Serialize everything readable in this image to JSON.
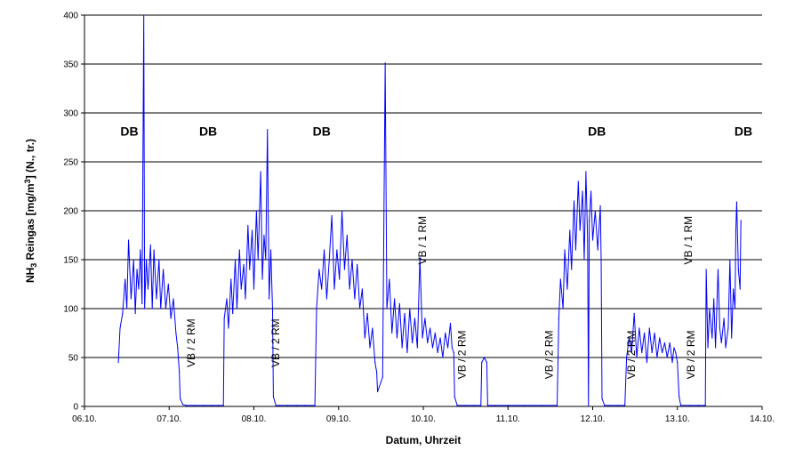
{
  "chart_data": {
    "type": "line",
    "title": "",
    "xlabel": "Datum, Uhrzeit",
    "ylabel_main": "NH",
    "ylabel_sub": "3",
    "ylabel_mid": " Reingas [mg/m",
    "ylabel_sup": "3",
    "ylabel_end": "] (N., tr.)",
    "x_ticks": [
      "06.10.",
      "07.10.",
      "08.10.",
      "09.10.",
      "10.10.",
      "11.10.",
      "12.10.",
      "13.10.",
      "14.10."
    ],
    "xlim": [
      0,
      8
    ],
    "ylim": [
      0,
      400
    ],
    "y_ticks": [
      0,
      50,
      100,
      150,
      200,
      250,
      300,
      350,
      400
    ],
    "grid": "horizontal",
    "series_color": "#0000ff",
    "annotations": [
      {
        "text": "DB",
        "x": 0.53,
        "y": 277,
        "style": "db"
      },
      {
        "text": "DB",
        "x": 1.46,
        "y": 277,
        "style": "db"
      },
      {
        "text": "DB",
        "x": 2.8,
        "y": 277,
        "style": "db"
      },
      {
        "text": "DB",
        "x": 6.05,
        "y": 277,
        "style": "db"
      },
      {
        "text": "DB",
        "x": 7.78,
        "y": 277,
        "style": "db"
      },
      {
        "text": "VB / 2 RM",
        "x": 1.3,
        "y": 40,
        "style": "vb"
      },
      {
        "text": "VB / 2 RM",
        "x": 2.3,
        "y": 40,
        "style": "vb"
      },
      {
        "text": "VB / 1 RM",
        "x": 4.03,
        "y": 145,
        "style": "vb"
      },
      {
        "text": "VB / 2 RM",
        "x": 4.5,
        "y": 28,
        "style": "vb"
      },
      {
        "text": "VB / 2 RM",
        "x": 5.53,
        "y": 28,
        "style": "vb"
      },
      {
        "text": "VB / 2 RM",
        "x": 6.5,
        "y": 28,
        "style": "vb"
      },
      {
        "text": "VB / 1 RM",
        "x": 7.17,
        "y": 145,
        "style": "vb"
      },
      {
        "text": "VB / 2 RM",
        "x": 7.2,
        "y": 28,
        "style": "vb"
      }
    ],
    "series": [
      {
        "points": [
          [
            0.4,
            45
          ],
          [
            0.42,
            80
          ],
          [
            0.45,
            95
          ],
          [
            0.48,
            130
          ],
          [
            0.5,
            100
          ],
          [
            0.52,
            170
          ],
          [
            0.55,
            110
          ],
          [
            0.58,
            150
          ],
          [
            0.6,
            95
          ],
          [
            0.62,
            140
          ],
          [
            0.64,
            120
          ],
          [
            0.66,
            160
          ],
          [
            0.68,
            105
          ],
          [
            0.7,
            400
          ],
          [
            0.71,
            100
          ],
          [
            0.73,
            150
          ],
          [
            0.75,
            120
          ],
          [
            0.78,
            165
          ],
          [
            0.8,
            100
          ],
          [
            0.82,
            160
          ],
          [
            0.85,
            110
          ],
          [
            0.88,
            150
          ],
          [
            0.9,
            100
          ],
          [
            0.93,
            140
          ],
          [
            0.96,
            100
          ],
          [
            0.99,
            125
          ],
          [
            1.02,
            90
          ],
          [
            1.05,
            110
          ],
          [
            1.08,
            75
          ],
          [
            1.1,
            60
          ],
          [
            1.12,
            35
          ],
          [
            1.13,
            8
          ],
          [
            1.16,
            2
          ],
          [
            1.2,
            1
          ],
          [
            1.3,
            1
          ],
          [
            1.4,
            1
          ],
          [
            1.5,
            1
          ],
          [
            1.58,
            1
          ],
          [
            1.64,
            1
          ],
          [
            1.65,
            90
          ],
          [
            1.68,
            110
          ],
          [
            1.7,
            80
          ],
          [
            1.73,
            130
          ],
          [
            1.75,
            95
          ],
          [
            1.78,
            150
          ],
          [
            1.8,
            100
          ],
          [
            1.83,
            160
          ],
          [
            1.85,
            120
          ],
          [
            1.88,
            145
          ],
          [
            1.9,
            110
          ],
          [
            1.93,
            185
          ],
          [
            1.95,
            140
          ],
          [
            1.98,
            180
          ],
          [
            2.0,
            120
          ],
          [
            2.03,
            200
          ],
          [
            2.05,
            150
          ],
          [
            2.08,
            240
          ],
          [
            2.1,
            130
          ],
          [
            2.12,
            175
          ],
          [
            2.14,
            150
          ],
          [
            2.16,
            283
          ],
          [
            2.18,
            110
          ],
          [
            2.2,
            160
          ],
          [
            2.22,
            100
          ],
          [
            2.23,
            10
          ],
          [
            2.26,
            1
          ],
          [
            2.3,
            1
          ],
          [
            2.4,
            1
          ],
          [
            2.5,
            1
          ],
          [
            2.6,
            1
          ],
          [
            2.72,
            1
          ],
          [
            2.74,
            100
          ],
          [
            2.77,
            140
          ],
          [
            2.8,
            120
          ],
          [
            2.83,
            160
          ],
          [
            2.86,
            110
          ],
          [
            2.89,
            150
          ],
          [
            2.92,
            195
          ],
          [
            2.95,
            120
          ],
          [
            2.98,
            160
          ],
          [
            3.01,
            130
          ],
          [
            3.04,
            200
          ],
          [
            3.07,
            140
          ],
          [
            3.1,
            175
          ],
          [
            3.13,
            120
          ],
          [
            3.16,
            150
          ],
          [
            3.19,
            110
          ],
          [
            3.22,
            145
          ],
          [
            3.25,
            100
          ],
          [
            3.28,
            120
          ],
          [
            3.31,
            70
          ],
          [
            3.34,
            95
          ],
          [
            3.37,
            60
          ],
          [
            3.4,
            80
          ],
          [
            3.43,
            45
          ],
          [
            3.45,
            35
          ],
          [
            3.46,
            15
          ],
          [
            3.48,
            20
          ],
          [
            3.5,
            25
          ],
          [
            3.52,
            30
          ],
          [
            3.55,
            351
          ],
          [
            3.57,
            100
          ],
          [
            3.6,
            130
          ],
          [
            3.63,
            75
          ],
          [
            3.66,
            110
          ],
          [
            3.69,
            70
          ],
          [
            3.72,
            105
          ],
          [
            3.75,
            60
          ],
          [
            3.78,
            95
          ],
          [
            3.81,
            55
          ],
          [
            3.84,
            100
          ],
          [
            3.87,
            65
          ],
          [
            3.9,
            90
          ],
          [
            3.93,
            60
          ],
          [
            3.96,
            152
          ],
          [
            3.99,
            70
          ],
          [
            4.02,
            90
          ],
          [
            4.05,
            65
          ],
          [
            4.08,
            80
          ],
          [
            4.11,
            60
          ],
          [
            4.14,
            75
          ],
          [
            4.17,
            55
          ],
          [
            4.2,
            70
          ],
          [
            4.23,
            50
          ],
          [
            4.26,
            75
          ],
          [
            4.29,
            60
          ],
          [
            4.32,
            85
          ],
          [
            4.34,
            60
          ],
          [
            4.36,
            55
          ],
          [
            4.37,
            10
          ],
          [
            4.4,
            1
          ],
          [
            4.5,
            1
          ],
          [
            4.6,
            1
          ],
          [
            4.68,
            1
          ],
          [
            4.69,
            45
          ],
          [
            4.72,
            50
          ],
          [
            4.75,
            45
          ],
          [
            4.76,
            1
          ],
          [
            4.85,
            1
          ],
          [
            5.0,
            1
          ],
          [
            5.2,
            1
          ],
          [
            5.4,
            1
          ],
          [
            5.58,
            1
          ],
          [
            5.6,
            90
          ],
          [
            5.62,
            130
          ],
          [
            5.65,
            100
          ],
          [
            5.67,
            160
          ],
          [
            5.7,
            120
          ],
          [
            5.73,
            180
          ],
          [
            5.75,
            140
          ],
          [
            5.78,
            210
          ],
          [
            5.8,
            160
          ],
          [
            5.83,
            230
          ],
          [
            5.85,
            180
          ],
          [
            5.88,
            220
          ],
          [
            5.9,
            150
          ],
          [
            5.92,
            240
          ],
          [
            5.94,
            170
          ],
          [
            5.95,
            1
          ],
          [
            5.96,
            190
          ],
          [
            5.98,
            220
          ],
          [
            6.0,
            170
          ],
          [
            6.03,
            200
          ],
          [
            6.06,
            160
          ],
          [
            6.09,
            205
          ],
          [
            6.1,
            150
          ],
          [
            6.11,
            8
          ],
          [
            6.14,
            1
          ],
          [
            6.2,
            1
          ],
          [
            6.3,
            1
          ],
          [
            6.38,
            1
          ],
          [
            6.4,
            50
          ],
          [
            6.43,
            70
          ],
          [
            6.46,
            55
          ],
          [
            6.49,
            95
          ],
          [
            6.52,
            50
          ],
          [
            6.55,
            80
          ],
          [
            6.58,
            55
          ],
          [
            6.61,
            75
          ],
          [
            6.64,
            45
          ],
          [
            6.67,
            80
          ],
          [
            6.7,
            55
          ],
          [
            6.73,
            75
          ],
          [
            6.76,
            50
          ],
          [
            6.79,
            70
          ],
          [
            6.82,
            55
          ],
          [
            6.85,
            65
          ],
          [
            6.88,
            50
          ],
          [
            6.91,
            65
          ],
          [
            6.94,
            45
          ],
          [
            6.96,
            60
          ],
          [
            6.98,
            55
          ],
          [
            7.0,
            45
          ],
          [
            7.02,
            10
          ],
          [
            7.04,
            1
          ],
          [
            7.15,
            1
          ],
          [
            7.25,
            1
          ],
          [
            7.33,
            1
          ],
          [
            7.34,
            140
          ],
          [
            7.36,
            60
          ],
          [
            7.38,
            100
          ],
          [
            7.41,
            70
          ],
          [
            7.43,
            110
          ],
          [
            7.45,
            60
          ],
          [
            7.48,
            140
          ],
          [
            7.5,
            80
          ],
          [
            7.52,
            65
          ],
          [
            7.55,
            90
          ],
          [
            7.57,
            60
          ],
          [
            7.6,
            80
          ],
          [
            7.62,
            150
          ],
          [
            7.64,
            70
          ],
          [
            7.66,
            120
          ],
          [
            7.68,
            100
          ],
          [
            7.69,
            180
          ],
          [
            7.7,
            209
          ],
          [
            7.72,
            140
          ],
          [
            7.74,
            120
          ],
          [
            7.75,
            190
          ]
        ]
      }
    ]
  }
}
